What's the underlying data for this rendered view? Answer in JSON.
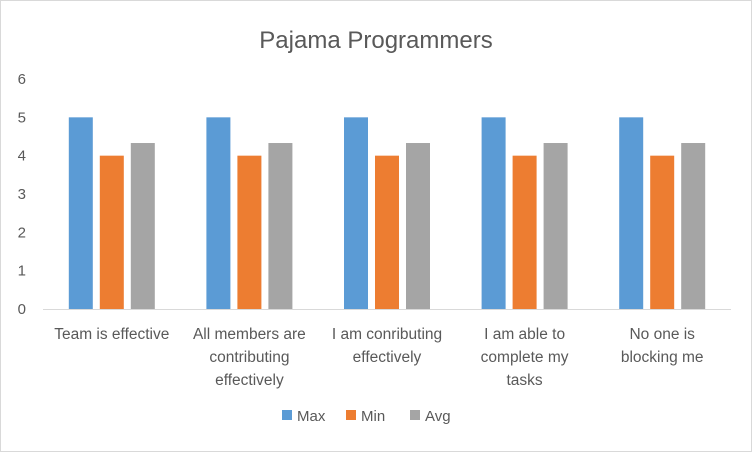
{
  "chart_data": {
    "type": "bar",
    "title": "Pajama Programmers",
    "categories": [
      [
        "Team is effective"
      ],
      [
        "All members are",
        "contributing",
        "effectively"
      ],
      [
        "I am conributing",
        "effectively"
      ],
      [
        "I am able to",
        "complete my",
        "tasks"
      ],
      [
        "No one is",
        "blocking me"
      ]
    ],
    "series": [
      {
        "name": "Max",
        "color": "#5b9bd5",
        "values": [
          5,
          5,
          5,
          5,
          5
        ]
      },
      {
        "name": "Min",
        "color": "#ed7d31",
        "values": [
          4,
          4,
          4,
          4,
          4
        ]
      },
      {
        "name": "Avg",
        "color": "#a5a5a5",
        "values": [
          4.33,
          4.33,
          4.33,
          4.33,
          4.33
        ]
      }
    ],
    "ylim": [
      0,
      6
    ],
    "yticks": [
      0,
      1,
      2,
      3,
      4,
      5,
      6
    ],
    "grid": false,
    "legend_position": "bottom"
  }
}
